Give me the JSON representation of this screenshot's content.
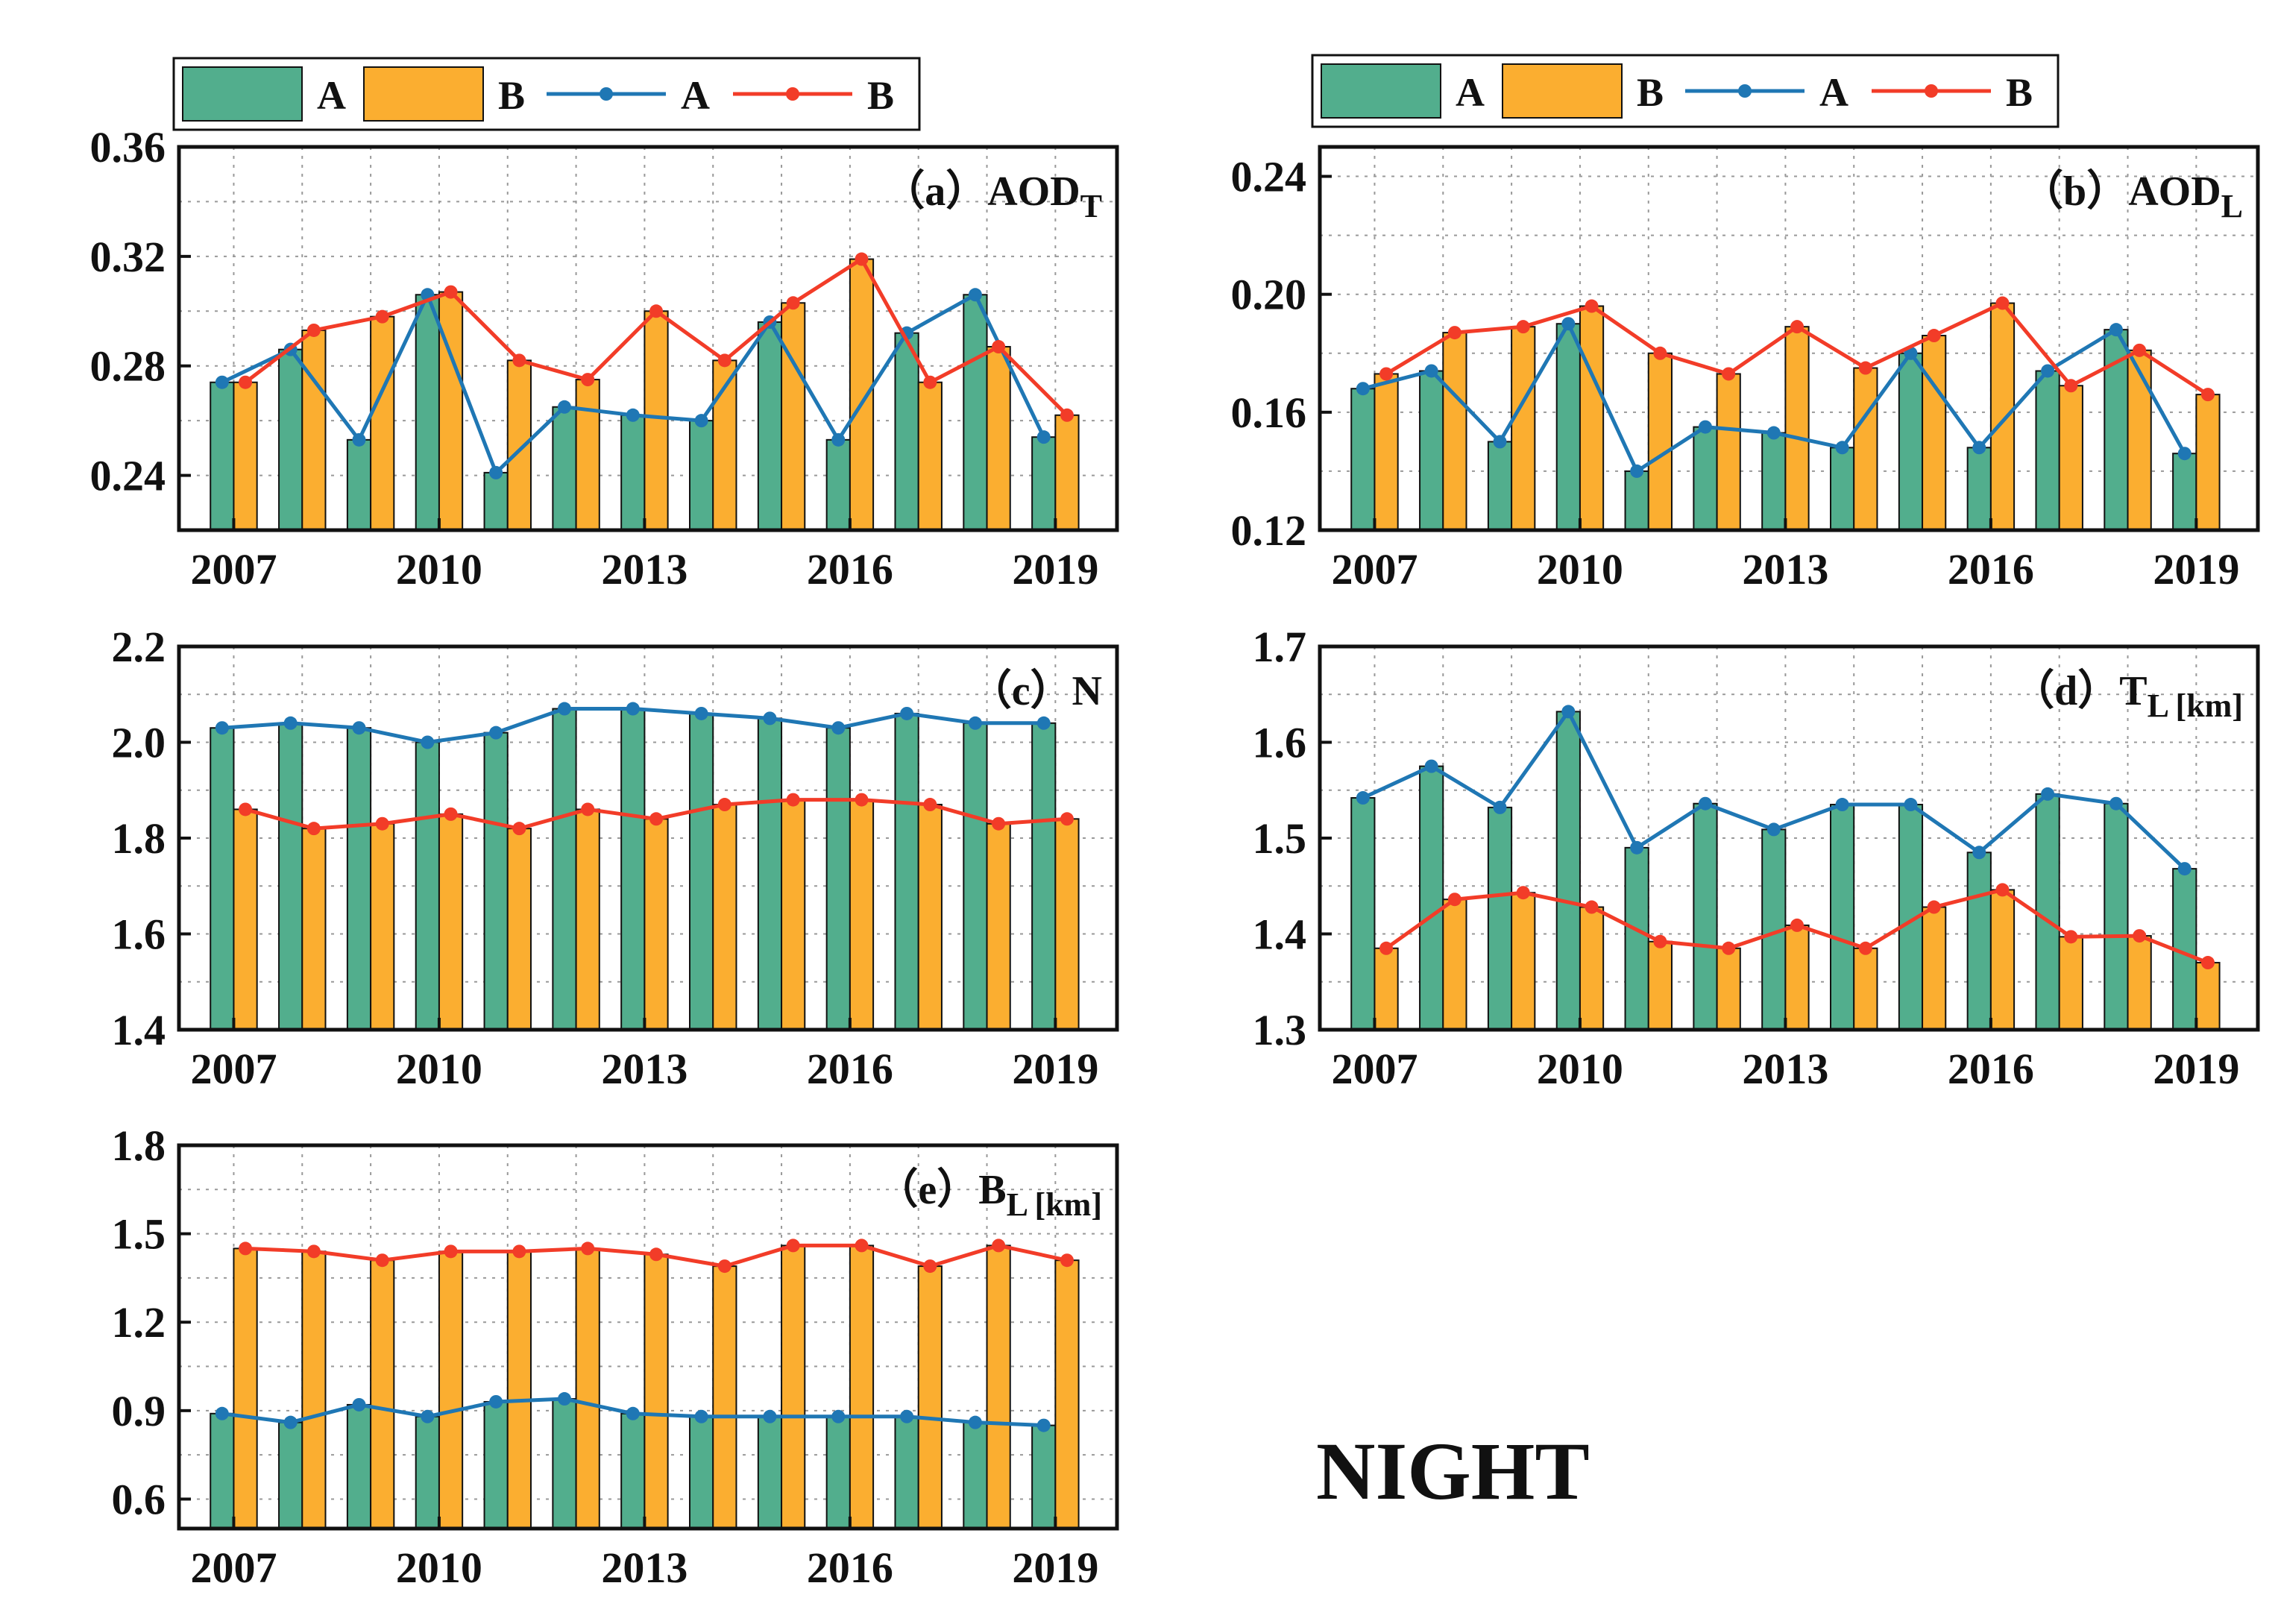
{
  "figure_label": "NIGHT",
  "legends": [
    {
      "entries": [
        {
          "kind": "bar",
          "label": "A",
          "color": "#52ae8d"
        },
        {
          "kind": "bar",
          "label": "B",
          "color": "#fbae30"
        },
        {
          "kind": "line",
          "label": "A",
          "color": "#1f77b4"
        },
        {
          "kind": "line",
          "label": "B",
          "color": "#f23c28"
        }
      ]
    },
    {
      "entries": [
        {
          "kind": "bar",
          "label": "A",
          "color": "#52ae8d"
        },
        {
          "kind": "bar",
          "label": "B",
          "color": "#fbae30"
        },
        {
          "kind": "line",
          "label": "A",
          "color": "#1f77b4"
        },
        {
          "kind": "line",
          "label": "B",
          "color": "#f23c28"
        }
      ]
    }
  ],
  "chart_data": [
    {
      "type": "bar",
      "id": "a",
      "label_prefix": "（a）AOD",
      "label_sub": "T",
      "x": [
        2007,
        2008,
        2009,
        2010,
        2011,
        2012,
        2013,
        2014,
        2015,
        2016,
        2017,
        2018,
        2019
      ],
      "xticks": [
        "2007",
        "2010",
        "2013",
        "2016",
        "2019"
      ],
      "ylim": [
        0.22,
        0.36
      ],
      "yticks": [
        "0.24",
        "0.28",
        "0.32",
        "0.36"
      ],
      "ytick_values": [
        0.24,
        0.28,
        0.32,
        0.36
      ],
      "grid": true,
      "series": [
        {
          "name": "A",
          "kind": "bar",
          "color": "#52ae8d",
          "values": [
            0.274,
            0.286,
            0.253,
            0.306,
            0.241,
            0.265,
            0.262,
            0.26,
            0.296,
            0.253,
            0.292,
            0.306,
            0.254
          ]
        },
        {
          "name": "B",
          "kind": "bar",
          "color": "#fbae30",
          "values": [
            0.274,
            0.293,
            0.298,
            0.307,
            0.282,
            0.275,
            0.3,
            0.282,
            0.303,
            0.319,
            0.274,
            0.287,
            0.262
          ]
        },
        {
          "name": "A",
          "kind": "line",
          "color": "#1f77b4",
          "values": [
            0.274,
            0.286,
            0.253,
            0.306,
            0.241,
            0.265,
            0.262,
            0.26,
            0.296,
            0.253,
            0.292,
            0.306,
            0.254
          ]
        },
        {
          "name": "B",
          "kind": "line",
          "color": "#f23c28",
          "values": [
            0.274,
            0.293,
            0.298,
            0.307,
            0.282,
            0.275,
            0.3,
            0.282,
            0.303,
            0.319,
            0.274,
            0.287,
            0.262
          ]
        }
      ]
    },
    {
      "type": "bar",
      "id": "b",
      "label_prefix": "（b）AOD",
      "label_sub": "L",
      "x": [
        2007,
        2008,
        2009,
        2010,
        2011,
        2012,
        2013,
        2014,
        2015,
        2016,
        2017,
        2018,
        2019
      ],
      "xticks": [
        "2007",
        "2010",
        "2013",
        "2016",
        "2019"
      ],
      "ylim": [
        0.12,
        0.25
      ],
      "yticks": [
        "0.12",
        "0.16",
        "0.20",
        "0.24"
      ],
      "ytick_values": [
        0.12,
        0.16,
        0.2,
        0.24
      ],
      "grid": true,
      "series": [
        {
          "name": "A",
          "kind": "bar",
          "color": "#52ae8d",
          "values": [
            0.168,
            0.174,
            0.15,
            0.19,
            0.14,
            0.155,
            0.153,
            0.148,
            0.18,
            0.148,
            0.174,
            0.188,
            0.146
          ]
        },
        {
          "name": "B",
          "kind": "bar",
          "color": "#fbae30",
          "values": [
            0.173,
            0.187,
            0.189,
            0.196,
            0.18,
            0.173,
            0.189,
            0.175,
            0.186,
            0.197,
            0.169,
            0.181,
            0.166
          ]
        },
        {
          "name": "A",
          "kind": "line",
          "color": "#1f77b4",
          "values": [
            0.168,
            0.174,
            0.15,
            0.19,
            0.14,
            0.155,
            0.153,
            0.148,
            0.18,
            0.148,
            0.174,
            0.188,
            0.146
          ]
        },
        {
          "name": "B",
          "kind": "line",
          "color": "#f23c28",
          "values": [
            0.173,
            0.187,
            0.189,
            0.196,
            0.18,
            0.173,
            0.189,
            0.175,
            0.186,
            0.197,
            0.169,
            0.181,
            0.166
          ]
        }
      ]
    },
    {
      "type": "bar",
      "id": "c",
      "label_prefix": "（c）N",
      "label_sub": "",
      "x": [
        2007,
        2008,
        2009,
        2010,
        2011,
        2012,
        2013,
        2014,
        2015,
        2016,
        2017,
        2018,
        2019
      ],
      "xticks": [
        "2007",
        "2010",
        "2013",
        "2016",
        "2019"
      ],
      "ylim": [
        1.4,
        2.2
      ],
      "yticks": [
        "1.4",
        "1.6",
        "1.8",
        "2.0",
        "2.2"
      ],
      "ytick_values": [
        1.4,
        1.6,
        1.8,
        2.0,
        2.2
      ],
      "grid": true,
      "series": [
        {
          "name": "A",
          "kind": "bar",
          "color": "#52ae8d",
          "values": [
            2.03,
            2.04,
            2.03,
            2.0,
            2.02,
            2.07,
            2.07,
            2.06,
            2.05,
            2.03,
            2.06,
            2.04,
            2.04
          ]
        },
        {
          "name": "B",
          "kind": "bar",
          "color": "#fbae30",
          "values": [
            1.86,
            1.82,
            1.83,
            1.85,
            1.82,
            1.86,
            1.84,
            1.87,
            1.88,
            1.88,
            1.87,
            1.83,
            1.84
          ]
        },
        {
          "name": "A",
          "kind": "line",
          "color": "#1f77b4",
          "values": [
            2.03,
            2.04,
            2.03,
            2.0,
            2.02,
            2.07,
            2.07,
            2.06,
            2.05,
            2.03,
            2.06,
            2.04,
            2.04
          ]
        },
        {
          "name": "B",
          "kind": "line",
          "color": "#f23c28",
          "values": [
            1.86,
            1.82,
            1.83,
            1.85,
            1.82,
            1.86,
            1.84,
            1.87,
            1.88,
            1.88,
            1.87,
            1.83,
            1.84
          ]
        }
      ]
    },
    {
      "type": "bar",
      "id": "d",
      "label_prefix": "（d）T",
      "label_sub": "L [km]",
      "x": [
        2007,
        2008,
        2009,
        2010,
        2011,
        2012,
        2013,
        2014,
        2015,
        2016,
        2017,
        2018,
        2019
      ],
      "xticks": [
        "2007",
        "2010",
        "2013",
        "2016",
        "2019"
      ],
      "ylim": [
        1.3,
        1.7
      ],
      "yticks": [
        "1.3",
        "1.4",
        "1.5",
        "1.6",
        "1.7"
      ],
      "ytick_values": [
        1.3,
        1.4,
        1.5,
        1.6,
        1.7
      ],
      "grid": true,
      "series": [
        {
          "name": "A",
          "kind": "bar",
          "color": "#52ae8d",
          "values": [
            1.542,
            1.575,
            1.532,
            1.632,
            1.49,
            1.536,
            1.509,
            1.535,
            1.535,
            1.485,
            1.546,
            1.536,
            1.468
          ]
        },
        {
          "name": "B",
          "kind": "bar",
          "color": "#fbae30",
          "values": [
            1.385,
            1.436,
            1.443,
            1.428,
            1.392,
            1.385,
            1.409,
            1.385,
            1.428,
            1.446,
            1.397,
            1.398,
            1.37
          ]
        },
        {
          "name": "A",
          "kind": "line",
          "color": "#1f77b4",
          "values": [
            1.542,
            1.575,
            1.532,
            1.632,
            1.49,
            1.536,
            1.509,
            1.535,
            1.535,
            1.485,
            1.546,
            1.536,
            1.468
          ]
        },
        {
          "name": "B",
          "kind": "line",
          "color": "#f23c28",
          "values": [
            1.385,
            1.436,
            1.443,
            1.428,
            1.392,
            1.385,
            1.409,
            1.385,
            1.428,
            1.446,
            1.397,
            1.398,
            1.37
          ]
        }
      ]
    },
    {
      "type": "bar",
      "id": "e",
      "label_prefix": "（e）B",
      "label_sub": "L [km]",
      "x": [
        2007,
        2008,
        2009,
        2010,
        2011,
        2012,
        2013,
        2014,
        2015,
        2016,
        2017,
        2018,
        2019
      ],
      "xticks": [
        "2007",
        "2010",
        "2013",
        "2016",
        "2019"
      ],
      "ylim": [
        0.5,
        1.8
      ],
      "yticks": [
        "0.6",
        "0.9",
        "1.2",
        "1.5",
        "1.8"
      ],
      "ytick_values": [
        0.6,
        0.9,
        1.2,
        1.5,
        1.8
      ],
      "grid": true,
      "series": [
        {
          "name": "A",
          "kind": "bar",
          "color": "#52ae8d",
          "values": [
            0.89,
            0.86,
            0.92,
            0.88,
            0.93,
            0.94,
            0.89,
            0.88,
            0.88,
            0.88,
            0.88,
            0.86,
            0.85
          ]
        },
        {
          "name": "B",
          "kind": "bar",
          "color": "#fbae30",
          "values": [
            1.45,
            1.44,
            1.41,
            1.44,
            1.44,
            1.45,
            1.43,
            1.39,
            1.46,
            1.46,
            1.39,
            1.46,
            1.41
          ]
        },
        {
          "name": "A",
          "kind": "line",
          "color": "#1f77b4",
          "values": [
            0.89,
            0.86,
            0.92,
            0.88,
            0.93,
            0.94,
            0.89,
            0.88,
            0.88,
            0.88,
            0.88,
            0.86,
            0.85
          ]
        },
        {
          "name": "B",
          "kind": "line",
          "color": "#f23c28",
          "values": [
            1.45,
            1.44,
            1.41,
            1.44,
            1.44,
            1.45,
            1.43,
            1.39,
            1.46,
            1.46,
            1.39,
            1.46,
            1.41
          ]
        }
      ]
    }
  ]
}
